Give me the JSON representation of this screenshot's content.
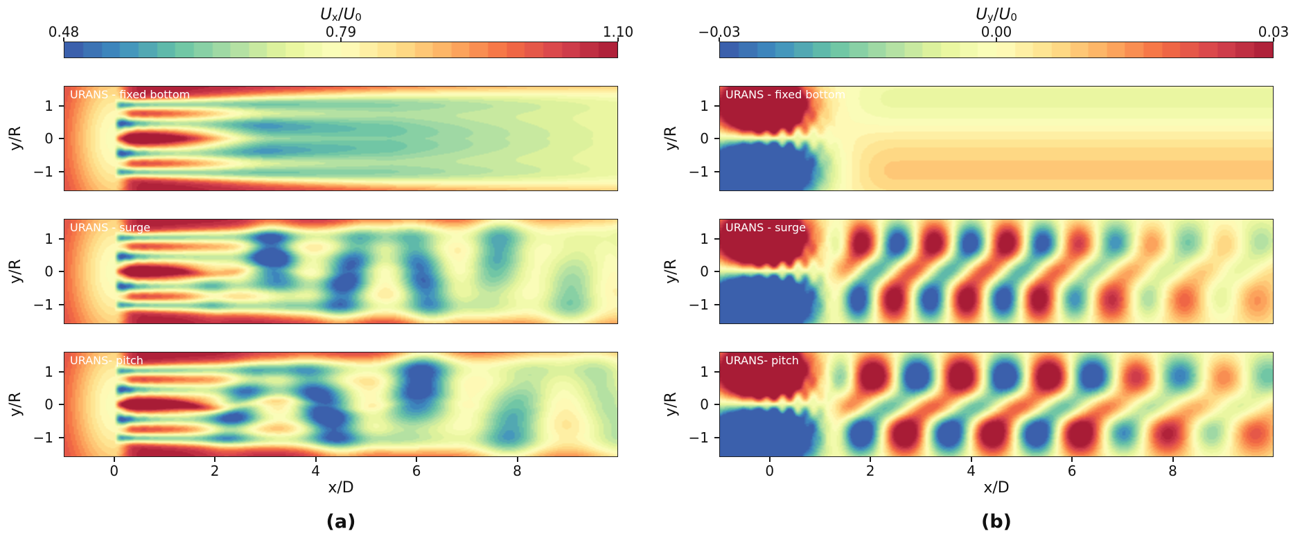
{
  "figures": [
    {
      "caption": "(a)",
      "colorbar": {
        "title_var": "U",
        "title_sub": "x",
        "title_slash": "/",
        "title_var2": "U",
        "title_sub2": "0",
        "tick_left": "0.48",
        "tick_mid": "0.79",
        "tick_right": "1.10"
      },
      "ylabel": "y/R",
      "xlabel": "x/D",
      "yticks": [
        "1",
        "0",
        "−1"
      ],
      "xticks": [
        "0",
        "2",
        "4",
        "6",
        "8"
      ],
      "panels": [
        {
          "label": "URANS - fixed bottom"
        },
        {
          "label": "URANS - surge"
        },
        {
          "label": "URANS- pitch"
        }
      ]
    },
    {
      "caption": "(b)",
      "colorbar": {
        "title_var": "U",
        "title_sub": "y",
        "title_slash": "/",
        "title_var2": "U",
        "title_sub2": "0",
        "tick_left": "−0.03",
        "tick_mid": "0.00",
        "tick_right": "0.03"
      },
      "ylabel": "y/R",
      "xlabel": "x/D",
      "yticks": [
        "1",
        "0",
        "−1"
      ],
      "xticks": [
        "0",
        "2",
        "4",
        "6",
        "8"
      ],
      "panels": [
        {
          "label": "URANS - fixed bottom"
        },
        {
          "label": "URANS - surge"
        },
        {
          "label": "URANS- pitch"
        }
      ]
    }
  ],
  "chart_data": [
    {
      "type": "heatmap",
      "component": "ux",
      "title": "U_x/U_0",
      "colorbar_range": [
        0.48,
        1.1
      ],
      "colorbar_ticks": [
        0.48,
        0.79,
        1.1
      ],
      "colorbar_position": "top horizontal",
      "x_range": [
        -1,
        10
      ],
      "y_range": [
        -1.6,
        1.6
      ],
      "xticks": [
        0,
        2,
        4,
        6,
        8
      ],
      "yticks": [
        1,
        0,
        -1
      ],
      "xlabel": "x/D",
      "ylabel": "y/R",
      "levels": 30,
      "panels": [
        {
          "label": "URANS - fixed bottom",
          "kind": "fixed",
          "description": "Steady symmetric wake: dark-red freestream ~1.05-1.10, upstream induction zone pale yellow near rotor, blue/teal blade and tip shear bands just behind rotor, red hub jet to x~1.5, bands merge into one broad teal deficit (~0.62-0.72) from x~3 to x~10 widening downstream"
        },
        {
          "label": "URANS - surge",
          "kind": "surge",
          "description": "Same wake but pulsating: meandering teal core with alternating deficit pockets between x~2 and x~6, hub jet slightly longer, broad teal deficit downstream"
        },
        {
          "label": "URANS- pitch",
          "kind": "pitch",
          "description": "Wake with pitch motion: strongest red hub jet extending to x~2.5, larger wavy deficit blobs x~2-6, broad teal deficit downstream"
        }
      ],
      "colormap_stops": [
        [
          0.0,
          "#3a57a8"
        ],
        [
          0.1,
          "#3e8ec0"
        ],
        [
          0.2,
          "#66c2a5"
        ],
        [
          0.3,
          "#aadda4"
        ],
        [
          0.4,
          "#e6f59b"
        ],
        [
          0.5,
          "#fefebe"
        ],
        [
          0.6,
          "#fee08b"
        ],
        [
          0.7,
          "#fdae61"
        ],
        [
          0.8,
          "#f46d43"
        ],
        [
          0.9,
          "#d6424e"
        ],
        [
          1.0,
          "#a81c36"
        ]
      ]
    },
    {
      "type": "heatmap",
      "component": "uy",
      "title": "U_y/U_0",
      "colorbar_range": [
        -0.03,
        0.03
      ],
      "colorbar_ticks": [
        -0.03,
        0.0,
        0.03
      ],
      "colorbar_position": "top horizontal",
      "x_range": [
        -1,
        10
      ],
      "y_range": [
        -1.6,
        1.6
      ],
      "xticks": [
        0,
        2,
        4,
        6,
        8
      ],
      "yticks": [
        1,
        0,
        -1
      ],
      "xlabel": "x/D",
      "ylabel": "y/R",
      "levels": 30,
      "panels": [
        {
          "label": "URANS - fixed bottom",
          "kind": "fixed",
          "description": "Large saturated dark-red (+0.03) lobe above rotor and dark-blue (−0.03) lobe below rotor for x<1; downstream mostly pale yellow ~0 with faint orange band along y~−1 and faint green band along y~+1"
        },
        {
          "label": "URANS - surge",
          "kind": "surge",
          "description": "Same near-rotor dipole, then alternating staggered red/blue vortex-street blobs at y~±0.8 from x~1.5 to x~6, decaying to faint alternating patches by x~10"
        },
        {
          "label": "URANS- pitch",
          "kind": "pitch",
          "description": "Same near-rotor dipole, larger lower-frequency alternating red/blue blobs including centerline structures from x~1.5 to x~6.5, decaying downstream"
        }
      ],
      "colormap_stops": [
        [
          0.0,
          "#3a57a8"
        ],
        [
          0.1,
          "#3e8ec0"
        ],
        [
          0.2,
          "#66c2a5"
        ],
        [
          0.3,
          "#aadda4"
        ],
        [
          0.4,
          "#e6f59b"
        ],
        [
          0.5,
          "#fefebe"
        ],
        [
          0.6,
          "#fee08b"
        ],
        [
          0.7,
          "#fdae61"
        ],
        [
          0.8,
          "#f46d43"
        ],
        [
          0.9,
          "#d6424e"
        ],
        [
          1.0,
          "#a81c36"
        ]
      ]
    }
  ]
}
